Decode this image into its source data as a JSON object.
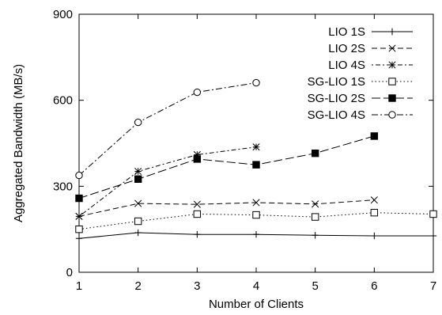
{
  "chart_data": {
    "type": "line",
    "xlabel": "Number of Clients",
    "ylabel": "Aggregated Bandwidth (MB/s)",
    "xlim": [
      1,
      7
    ],
    "ylim": [
      0,
      900
    ],
    "xticks": [
      1,
      2,
      3,
      4,
      5,
      6,
      7
    ],
    "yticks": [
      0,
      300,
      600,
      900
    ],
    "grid": false,
    "legend_position": "top-right",
    "series": [
      {
        "name": "LIO 1S",
        "marker": "plus",
        "dash": "solid",
        "x": [
          1,
          2,
          3,
          4,
          5,
          6,
          7
        ],
        "y": [
          118,
          138,
          132,
          132,
          129,
          127,
          127
        ]
      },
      {
        "name": "LIO 2S",
        "marker": "cross",
        "dash": "dashed",
        "x": [
          1,
          2,
          3,
          4,
          5,
          6
        ],
        "y": [
          195,
          240,
          237,
          243,
          238,
          252
        ]
      },
      {
        "name": "LIO 4S",
        "marker": "star",
        "dash": "dotdash",
        "x": [
          1,
          2,
          3,
          4
        ],
        "y": [
          195,
          352,
          410,
          437
        ]
      },
      {
        "name": "SG-LIO 1S",
        "marker": "square-open",
        "dash": "dotted",
        "x": [
          1,
          2,
          3,
          4,
          5,
          6,
          7
        ],
        "y": [
          150,
          178,
          203,
          200,
          193,
          208,
          203
        ]
      },
      {
        "name": "SG-LIO 2S",
        "marker": "square-filled",
        "dash": "longdash",
        "x": [
          1,
          2,
          3,
          4,
          5,
          6
        ],
        "y": [
          258,
          325,
          395,
          375,
          415,
          475
        ]
      },
      {
        "name": "SG-LIO 4S",
        "marker": "circle-open",
        "dash": "dashdot",
        "x": [
          1,
          2,
          3,
          4
        ],
        "y": [
          338,
          523,
          628,
          661
        ]
      }
    ]
  }
}
